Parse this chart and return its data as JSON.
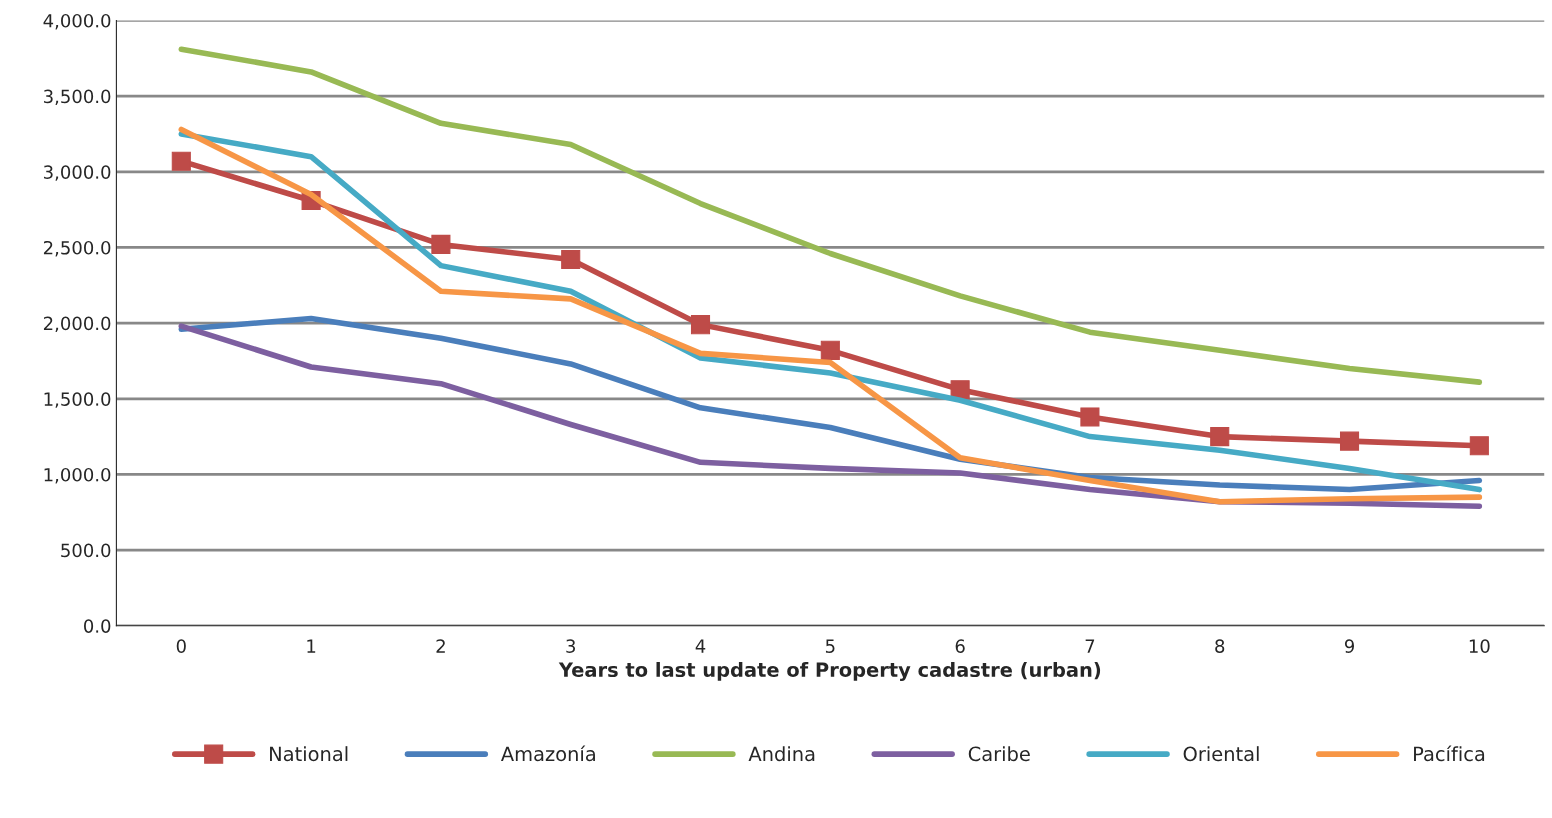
{
  "chart_data": {
    "type": "line",
    "xlabel": "Years to last update of Property cadastre (urban)",
    "categories": [
      "0",
      "1",
      "2",
      "3",
      "4",
      "5",
      "6",
      "7",
      "8",
      "9",
      "10"
    ],
    "series": [
      {
        "name": "National",
        "color": "#be4b48",
        "marker": "square",
        "values": [
          3070,
          2810,
          2520,
          2420,
          1990,
          1820,
          1560,
          1380,
          1250,
          1220,
          1190
        ]
      },
      {
        "name": "Amazonía",
        "color": "#4a7ebb",
        "values": [
          1960,
          2030,
          1900,
          1730,
          1440,
          1310,
          1100,
          980,
          930,
          900,
          960
        ]
      },
      {
        "name": "Andina",
        "color": "#98b954",
        "values": [
          3810,
          3660,
          3320,
          3180,
          2790,
          2460,
          2180,
          1940,
          1820,
          1700,
          1610
        ]
      },
      {
        "name": "Caribe",
        "color": "#7d5fa0",
        "values": [
          1980,
          1710,
          1600,
          1330,
          1080,
          1040,
          1010,
          900,
          820,
          810,
          790
        ]
      },
      {
        "name": "Oriental",
        "color": "#46aac5",
        "values": [
          3250,
          3100,
          2380,
          2210,
          1770,
          1670,
          1490,
          1250,
          1160,
          1040,
          900
        ]
      },
      {
        "name": "Pacífica",
        "color": "#f79646",
        "values": [
          3280,
          2850,
          2210,
          2160,
          1800,
          1740,
          1110,
          960,
          820,
          840,
          850
        ]
      }
    ],
    "ylim": [
      0,
      4000
    ],
    "yticks": [
      {
        "value": 0,
        "label": "0.0"
      },
      {
        "value": 500,
        "label": "500.0"
      },
      {
        "value": 1000,
        "label": "1,000.0"
      },
      {
        "value": 1500,
        "label": "1,500.0"
      },
      {
        "value": 2000,
        "label": "2,000.0"
      },
      {
        "value": 2500,
        "label": "2,500.0"
      },
      {
        "value": 3000,
        "label": "3,000.0"
      },
      {
        "value": 3500,
        "label": "3,500.0"
      },
      {
        "value": 4000,
        "label": "4,000.0"
      }
    ],
    "grid": "y",
    "legend": "bottom",
    "line_style": "solid"
  }
}
